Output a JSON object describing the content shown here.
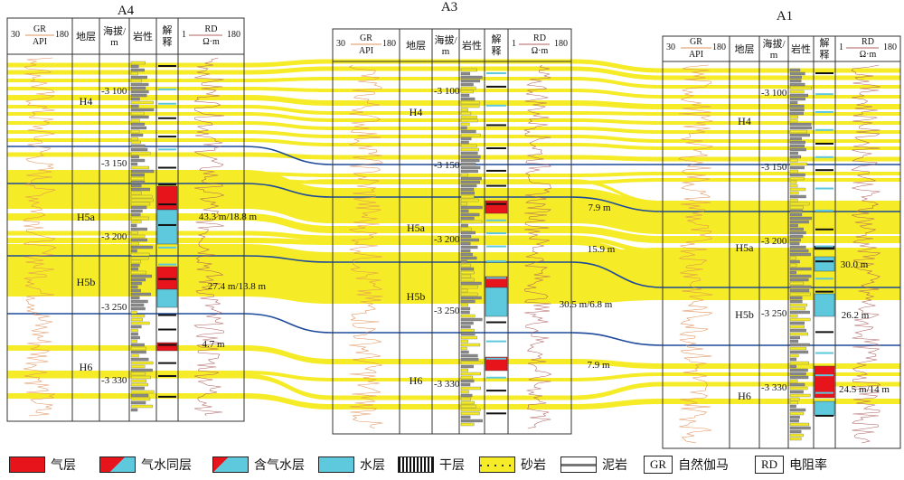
{
  "wells": [
    {
      "name": "A4",
      "headers": {
        "gr_left": "30",
        "gr_name": "GR",
        "gr_unit": "API",
        "gr_right": "180",
        "strata": "地层",
        "elev": "海拔/",
        "elev_unit": "m",
        "litho": "岩性",
        "interp": "解",
        "interp2": "释",
        "rd_left": "1",
        "rd_name": "RD",
        "rd_unit": "Ω·m",
        "rd_right": "180"
      },
      "depths": [
        "-3 100",
        "-3 150",
        "-3 200",
        "-3 250",
        "-3 330"
      ],
      "strata": [
        "H4",
        "H5a",
        "H5b",
        "H6"
      ],
      "thickness": [
        "43.3 m/18.8 m",
        "27.4 m/13.8 m",
        "4.7 m"
      ]
    },
    {
      "name": "A3",
      "headers": {
        "gr_left": "30",
        "gr_name": "GR",
        "gr_unit": "API",
        "gr_right": "180",
        "strata": "地层",
        "elev": "海拔/",
        "elev_unit": "m",
        "litho": "岩性",
        "interp": "解",
        "interp2": "释",
        "rd_left": "1",
        "rd_name": "RD",
        "rd_unit": "Ω·m",
        "rd_right": "180"
      },
      "depths": [
        "-3 100",
        "-3 150",
        "-3 200",
        "-3 250",
        "-3 330"
      ],
      "strata": [
        "H4",
        "H5a",
        "H5b",
        "H6"
      ],
      "thickness": [
        "7.9 m",
        "15.9 m",
        "30.5 m/6.8 m",
        "7.9 m"
      ]
    },
    {
      "name": "A1",
      "headers": {
        "gr_left": "30",
        "gr_name": "GR",
        "gr_unit": "API",
        "gr_right": "180",
        "strata": "地层",
        "elev": "海拔/",
        "elev_unit": "m",
        "litho": "岩性",
        "interp": "解",
        "interp2": "释",
        "rd_left": "1",
        "rd_name": "RD",
        "rd_unit": "Ω·m",
        "rd_right": "180"
      },
      "depths": [
        "-3 100",
        "-3 150",
        "-3 200",
        "-3 250",
        "-3 330"
      ],
      "strata": [
        "H4",
        "H5a",
        "H5b",
        "H6"
      ],
      "thickness": [
        "30.0 m",
        "26.2 m",
        "24.5 m/14 m"
      ]
    }
  ],
  "legend": [
    {
      "key": "gas",
      "label": "气层",
      "color": "#e8141b"
    },
    {
      "key": "gas_water",
      "label": "气水同层",
      "color": "#e8141b"
    },
    {
      "key": "gas_bearing_water",
      "label": "含气水层",
      "color": "#5ec8dc"
    },
    {
      "key": "water",
      "label": "水层",
      "color": "#5ec8dc"
    },
    {
      "key": "dry",
      "label": "干层",
      "color": "#111111"
    },
    {
      "key": "sandstone",
      "label": "砂岩",
      "color": "#f5eb26"
    },
    {
      "key": "mudstone",
      "label": "泥岩",
      "color": "#9a9a9a"
    },
    {
      "key": "gr",
      "abbr": "GR",
      "label": "自然伽马"
    },
    {
      "key": "rd",
      "abbr": "RD",
      "label": "电阻率"
    }
  ],
  "colors": {
    "sand": "#f5eb26",
    "boundary": "#1d4a9a",
    "gas": "#e8141b",
    "water": "#5ec8dc",
    "gr_curve": "#e0905a",
    "rd_curve": "#b06060"
  }
}
